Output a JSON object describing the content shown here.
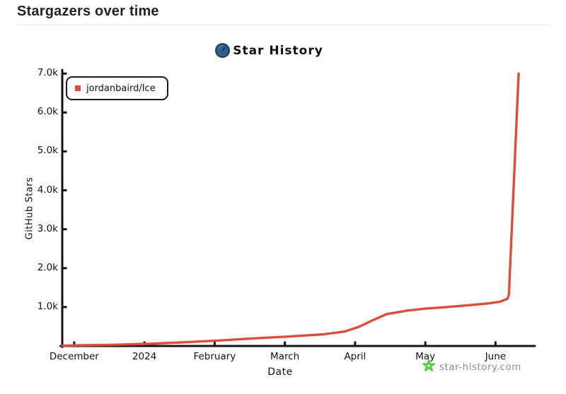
{
  "header": {
    "title": "Stargazers over time"
  },
  "chart": {
    "title": "Star History",
    "legend": [
      {
        "label": "jordanbaird/Ice",
        "color": "#dc4d3b"
      }
    ],
    "ylabel": "GitHub Stars",
    "xlabel": "Date"
  },
  "watermark": {
    "text": "star-history.com",
    "star_color": "#3bcb26"
  },
  "colors": {
    "line": "#dc4d3b",
    "axis": "#141414",
    "logo_blue": "#2d5f8c",
    "logo_blue_dark": "#1b3a5e",
    "header_text": "#1f2328",
    "divider": "#e7e9ec",
    "watermark_text": "#8c8c8c",
    "watermark_green": "#3bcb26"
  },
  "chart_data": {
    "type": "line",
    "title": "Star History",
    "xlabel": "Date",
    "ylabel": "GitHub Stars",
    "grid": false,
    "legend_position": "top-left",
    "x_unit": "months (0 = December 2023)",
    "xlim": [
      -0.17,
      6.53
    ],
    "ylim": [
      0,
      7040
    ],
    "x_ticks": [
      {
        "label": "December",
        "value": 0
      },
      {
        "label": "2024",
        "value": 1
      },
      {
        "label": "February",
        "value": 2
      },
      {
        "label": "March",
        "value": 3
      },
      {
        "label": "April",
        "value": 4
      },
      {
        "label": "May",
        "value": 5
      },
      {
        "label": "June",
        "value": 6
      }
    ],
    "y_ticks": [
      {
        "label": "1.0k",
        "value": 1000
      },
      {
        "label": "2.0k",
        "value": 2000
      },
      {
        "label": "3.0k",
        "value": 3000
      },
      {
        "label": "4.0k",
        "value": 4000
      },
      {
        "label": "5.0k",
        "value": 5000
      },
      {
        "label": "6.0k",
        "value": 6000
      },
      {
        "label": "7.0k",
        "value": 7000
      }
    ],
    "series": [
      {
        "name": "jordanbaird/Ice",
        "color": "#dc4d3b",
        "points": [
          [
            -0.17,
            8
          ],
          [
            0,
            15
          ],
          [
            0.55,
            30
          ],
          [
            1.05,
            55
          ],
          [
            1.55,
            95
          ],
          [
            2.05,
            140
          ],
          [
            2.55,
            195
          ],
          [
            3.02,
            240
          ],
          [
            3.55,
            300
          ],
          [
            3.85,
            370
          ],
          [
            4.05,
            490
          ],
          [
            4.25,
            660
          ],
          [
            4.45,
            820
          ],
          [
            4.75,
            910
          ],
          [
            5.0,
            960
          ],
          [
            5.3,
            1000
          ],
          [
            5.6,
            1045
          ],
          [
            5.9,
            1095
          ],
          [
            6.07,
            1140
          ],
          [
            6.17,
            1215
          ],
          [
            6.19,
            1320
          ],
          [
            6.33,
            7000
          ]
        ]
      }
    ]
  }
}
